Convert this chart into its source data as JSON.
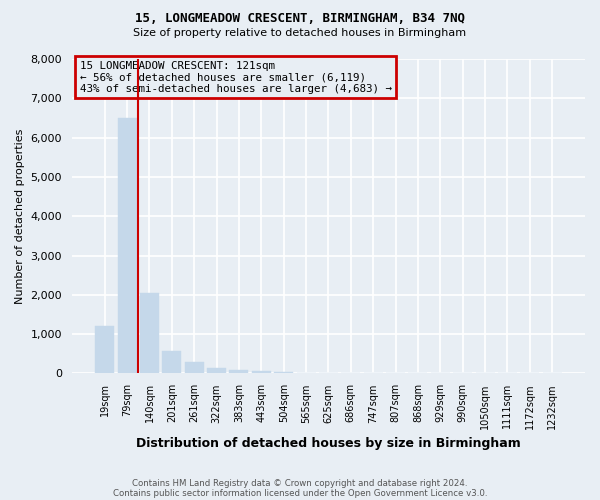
{
  "title1": "15, LONGMEADOW CRESCENT, BIRMINGHAM, B34 7NQ",
  "title2": "Size of property relative to detached houses in Birmingham",
  "xlabel": "Distribution of detached houses by size in Birmingham",
  "ylabel": "Number of detached properties",
  "footnote1": "Contains HM Land Registry data © Crown copyright and database right 2024.",
  "footnote2": "Contains public sector information licensed under the Open Government Licence v3.0.",
  "annotation_line1": "15 LONGMEADOW CRESCENT: 121sqm",
  "annotation_line2": "← 56% of detached houses are smaller (6,119)",
  "annotation_line3": "43% of semi-detached houses are larger (4,683) →",
  "property_sqm": 121,
  "property_bar_index": 1,
  "bin_labels": [
    "19sqm",
    "79sqm",
    "140sqm",
    "201sqm",
    "261sqm",
    "322sqm",
    "383sqm",
    "443sqm",
    "504sqm",
    "565sqm",
    "625sqm",
    "686sqm",
    "747sqm",
    "807sqm",
    "868sqm",
    "929sqm",
    "990sqm",
    "1050sqm",
    "1111sqm",
    "1172sqm",
    "1232sqm"
  ],
  "bin_values": [
    1200,
    6500,
    2050,
    580,
    300,
    150,
    80,
    50,
    30,
    20,
    10,
    5,
    3,
    2,
    1,
    1,
    0,
    0,
    0,
    0,
    0
  ],
  "bar_color": "#c5d8ea",
  "ylim": [
    0,
    8000
  ],
  "yticks": [
    0,
    1000,
    2000,
    3000,
    4000,
    5000,
    6000,
    7000,
    8000
  ],
  "background_color": "#e8eef4",
  "grid_color": "#d0dae4",
  "vline_color": "#cc0000",
  "annotation_box_color": "#cc0000"
}
